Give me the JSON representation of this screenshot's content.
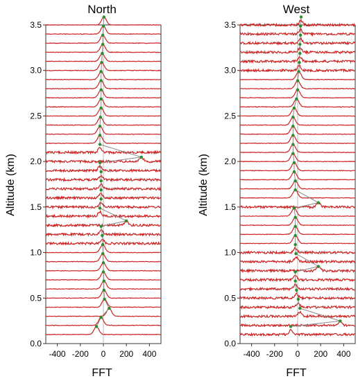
{
  "chart_data": [
    {
      "type": "line",
      "title": "North",
      "xlabel": "FFT",
      "ylabel": "Altitude (km)",
      "xlim": [
        -500,
        500
      ],
      "ylim": [
        0,
        3.5
      ],
      "xticks": [
        -400,
        -200,
        0,
        200,
        400
      ],
      "yticks": [
        0.0,
        0.5,
        1.0,
        1.5,
        2.0,
        2.5,
        3.0,
        3.5
      ],
      "altitudes_km": [
        0.1,
        0.2,
        0.3,
        0.4,
        0.5,
        0.6,
        0.7,
        0.8,
        0.9,
        1.0,
        1.1,
        1.2,
        1.3,
        1.4,
        1.5,
        1.6,
        1.7,
        1.8,
        1.9,
        2.0,
        2.1,
        2.2,
        2.3,
        2.4,
        2.5,
        2.6,
        2.7,
        2.8,
        2.9,
        3.0,
        3.1,
        3.2,
        3.3,
        3.4,
        3.5
      ],
      "peak_fft": [
        -60,
        -20,
        50,
        10,
        5,
        5,
        0,
        0,
        -5,
        -5,
        -10,
        -20,
        200,
        -30,
        -20,
        -20,
        -20,
        -20,
        -30,
        330,
        -30,
        -30,
        -30,
        -25,
        -20,
        -20,
        -20,
        -20,
        -20,
        -15,
        -10,
        -5,
        -5,
        0,
        5
      ],
      "series_color": "#cc2222",
      "marker_color": "#2e8b2e",
      "connector_color": "#888888"
    },
    {
      "type": "line",
      "title": "West",
      "xlabel": "FFT",
      "ylabel": "Altitude (km)",
      "xlim": [
        -500,
        500
      ],
      "ylim": [
        0,
        3.5
      ],
      "xticks": [
        -400,
        -200,
        0,
        200,
        400
      ],
      "yticks": [
        0.0,
        0.5,
        1.0,
        1.5,
        2.0,
        2.5,
        3.0,
        3.5
      ],
      "altitudes_km": [
        0.1,
        0.2,
        0.3,
        0.4,
        0.5,
        0.6,
        0.7,
        0.8,
        0.9,
        1.0,
        1.1,
        1.2,
        1.3,
        1.4,
        1.5,
        1.6,
        1.7,
        1.8,
        1.9,
        2.0,
        2.1,
        2.2,
        2.3,
        2.4,
        2.5,
        2.6,
        2.7,
        2.8,
        2.9,
        3.0,
        3.1,
        3.2,
        3.3,
        3.4,
        3.5
      ],
      "peak_fft": [
        -60,
        370,
        20,
        5,
        -10,
        -20,
        -20,
        180,
        -15,
        -20,
        -20,
        -20,
        -20,
        -30,
        180,
        -20,
        -20,
        -30,
        -30,
        -40,
        -40,
        -40,
        -40,
        -40,
        -30,
        -10,
        0,
        0,
        10,
        15,
        20,
        20,
        25,
        25,
        30
      ],
      "series_color": "#cc2222",
      "marker_color": "#2e8b2e",
      "connector_color": "#888888"
    }
  ]
}
